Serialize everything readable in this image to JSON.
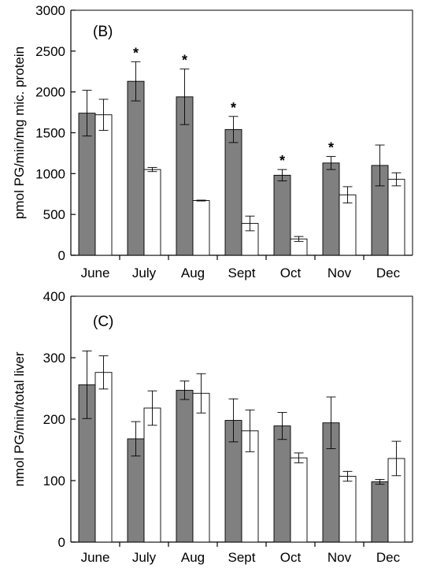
{
  "chart_data": [
    {
      "type": "bar",
      "panel_label": "(B)",
      "ylabel": "pmol PG/min/mg mic. protein",
      "xlabel": "",
      "categories": [
        "June",
        "July",
        "Aug",
        "Sept",
        "Oct",
        "Nov",
        "Dec"
      ],
      "ylim": [
        0,
        3000
      ],
      "yticks": [
        0,
        500,
        1000,
        1500,
        2000,
        2500,
        3000
      ],
      "series": [
        {
          "fill": "#808080",
          "values": [
            1740,
            2130,
            1940,
            1540,
            980,
            1130,
            1100
          ],
          "errors": [
            280,
            240,
            340,
            160,
            70,
            80,
            250
          ]
        },
        {
          "fill": "#ffffff",
          "values": [
            1720,
            1050,
            670,
            390,
            200,
            740,
            930
          ],
          "errors": [
            190,
            25,
            5,
            90,
            30,
            100,
            80
          ]
        }
      ],
      "significance": [
        "",
        "*",
        "*",
        "*",
        "*",
        "*",
        ""
      ],
      "grid": false
    },
    {
      "type": "bar",
      "panel_label": "(C)",
      "ylabel": "nmol PG/min/total liver",
      "xlabel": "",
      "categories": [
        "June",
        "July",
        "Aug",
        "Sept",
        "Oct",
        "Nov",
        "Dec"
      ],
      "ylim": [
        0,
        400
      ],
      "yticks": [
        0,
        100,
        200,
        300,
        400
      ],
      "series": [
        {
          "fill": "#808080",
          "values": [
            256,
            168,
            247,
            198,
            189,
            194,
            98
          ],
          "errors": [
            55,
            28,
            15,
            35,
            22,
            42,
            4
          ]
        },
        {
          "fill": "#ffffff",
          "values": [
            276,
            218,
            242,
            181,
            137,
            107,
            136
          ],
          "errors": [
            27,
            28,
            32,
            34,
            8,
            8,
            28
          ]
        }
      ],
      "significance": [
        "",
        "",
        "",
        "",
        "",
        "",
        ""
      ],
      "grid": false
    }
  ]
}
